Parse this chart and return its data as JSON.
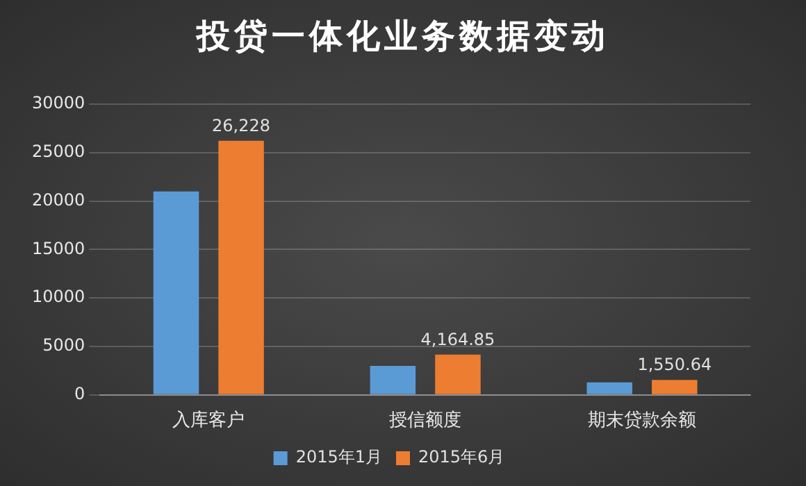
{
  "chart_data": {
    "type": "bar",
    "title": "投贷一体化业务数据变动",
    "categories": [
      "入库客户",
      "授信额度",
      "期末贷款余额"
    ],
    "series": [
      {
        "name": "2015年1月",
        "color": "#5b9bd5",
        "values": [
          21000,
          3000,
          1300
        ]
      },
      {
        "name": "2015年6月",
        "color": "#ed7d31",
        "values": [
          26228,
          4164.85,
          1550.64
        ],
        "value_labels": [
          "26,228",
          "4,164.85",
          "1,550.64"
        ]
      }
    ],
    "ylim": [
      0,
      30000
    ],
    "yticks": [
      0,
      5000,
      10000,
      15000,
      20000,
      25000,
      30000
    ],
    "grid": "y",
    "legend": "bottom"
  }
}
